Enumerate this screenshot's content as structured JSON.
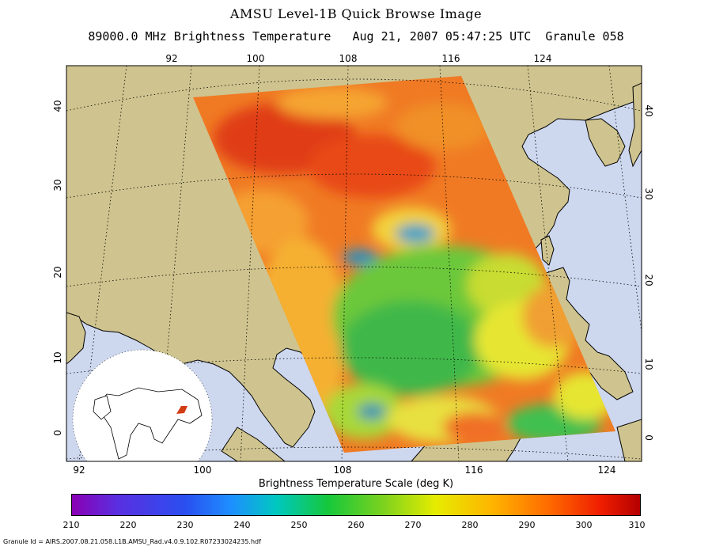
{
  "title": "AMSU Level-1B Quick Browse Image",
  "subtitle": "89000.0 MHz Brightness Temperature   Aug 21, 2007 05:47:25 UTC  Granule 058",
  "map": {
    "top_lon_ticks": [
      "92",
      "100",
      "108",
      "116",
      "124"
    ],
    "bottom_lon_ticks": [
      "92",
      "100",
      "108",
      "116",
      "124"
    ],
    "left_lat_ticks": [
      "40",
      "30",
      "20",
      "10",
      "0"
    ],
    "right_lat_ticks": [
      "40",
      "30",
      "20",
      "10",
      "0"
    ],
    "colors": {
      "land": "#cfc48f",
      "ocean": "#cdd7ee",
      "frame": "#000000"
    }
  },
  "scale": {
    "title": "Brightness Temperature Scale (deg K)",
    "labels": [
      "210",
      "220",
      "230",
      "240",
      "250",
      "260",
      "270",
      "280",
      "290",
      "300",
      "310"
    ]
  },
  "footer": "Granule Id = AIRS.2007.08.21.058.L1B.AMSU_Rad.v4.0.9.102.R07233024235.hdf"
}
